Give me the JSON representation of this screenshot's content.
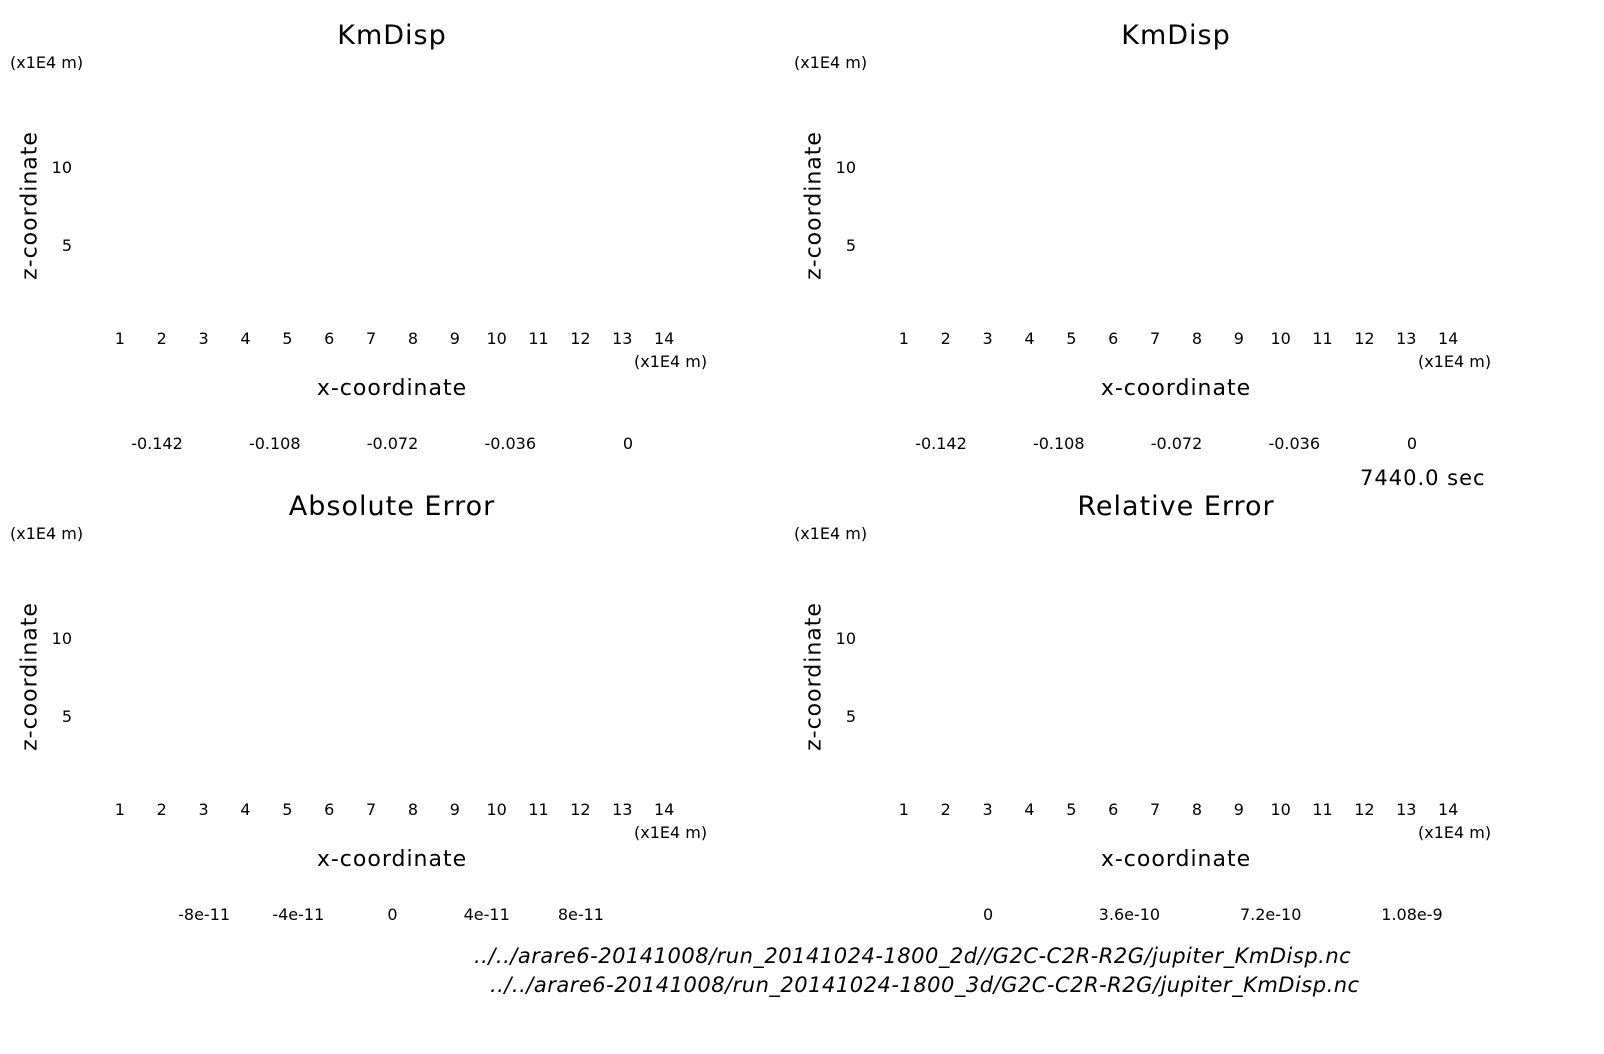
{
  "time_label": "7440.0 sec",
  "footer": {
    "path_2d": "../../arare6-20141008/run_20141024-1800_2d//G2C-C2R-R2G/jupiter_KmDisp.nc",
    "path_3d": "../../arare6-20141008/run_20141024-1800_3d/G2C-C2R-R2G/jupiter_KmDisp.nc"
  },
  "chart_data": [
    {
      "type": "heatmap",
      "title": "KmDisp",
      "xlabel": "x-coordinate",
      "ylabel": "z-coordinate",
      "x_unit": "(x1E4 m)",
      "y_unit": "(x1E4 m)",
      "xlim": [
        0,
        15
      ],
      "ylim": [
        0,
        15
      ],
      "x_ticks": [
        1,
        2,
        3,
        4,
        5,
        6,
        7,
        8,
        9,
        10,
        11,
        12,
        13,
        14
      ],
      "y_ticks": [
        5,
        10
      ],
      "field": "vortex",
      "colorbar": {
        "colors": [
          "#7f00a8",
          "#0a0a96",
          "#0000e6",
          "#1e6ee6",
          "#00aaf0",
          "#28e6c8",
          "#a0e632",
          "#f0c800",
          "#f08c00",
          "#f04600",
          "#f01e32",
          "#ffaaaa"
        ],
        "tick_labels": [
          "-0.142",
          "-0.108",
          "-0.072",
          "-0.036",
          "0"
        ],
        "tick_fracs": [
          0.0,
          0.25,
          0.5,
          0.75,
          1.0
        ]
      }
    },
    {
      "type": "heatmap",
      "title": "KmDisp",
      "xlabel": "x-coordinate",
      "ylabel": "z-coordinate",
      "x_unit": "(x1E4 m)",
      "y_unit": "(x1E4 m)",
      "xlim": [
        0,
        15
      ],
      "ylim": [
        0,
        15
      ],
      "x_ticks": [
        1,
        2,
        3,
        4,
        5,
        6,
        7,
        8,
        9,
        10,
        11,
        12,
        13,
        14
      ],
      "y_ticks": [
        5,
        10
      ],
      "field": "vortex",
      "colorbar": {
        "colors": [
          "#7f00a8",
          "#0a0a96",
          "#0000e6",
          "#1e6ee6",
          "#00aaf0",
          "#28e6c8",
          "#a0e632",
          "#f0c800",
          "#f08c00",
          "#f04600",
          "#f01e32",
          "#ffaaaa"
        ],
        "tick_labels": [
          "-0.142",
          "-0.108",
          "-0.072",
          "-0.036",
          "0"
        ],
        "tick_fracs": [
          0.0,
          0.25,
          0.5,
          0.75,
          1.0
        ]
      }
    },
    {
      "type": "heatmap",
      "title": "Absolute Error",
      "xlabel": "x-coordinate",
      "ylabel": "z-coordinate",
      "x_unit": "(x1E4 m)",
      "y_unit": "(x1E4 m)",
      "xlim": [
        0,
        15
      ],
      "ylim": [
        0,
        15
      ],
      "x_ticks": [
        1,
        2,
        3,
        4,
        5,
        6,
        7,
        8,
        9,
        10,
        11,
        12,
        13,
        14
      ],
      "y_ticks": [
        5,
        10
      ],
      "field": "noise-abs",
      "colorbar": {
        "colors": [
          "#7f00a8",
          "#0a0a96",
          "#0000e6",
          "#1e78e6",
          "#00f0f0",
          "#c8ff00",
          "#f0a000",
          "#f06400",
          "#f01e1e",
          "#ffaaaa"
        ],
        "tick_labels": [
          "-8e-11",
          "-4e-11",
          "0",
          "4e-11",
          "8e-11"
        ],
        "tick_fracs": [
          0.1,
          0.3,
          0.5,
          0.7,
          0.9
        ]
      }
    },
    {
      "type": "heatmap",
      "title": "Relative Error",
      "xlabel": "x-coordinate",
      "ylabel": "z-coordinate",
      "x_unit": "(x1E4 m)",
      "y_unit": "(x1E4 m)",
      "xlim": [
        0,
        15
      ],
      "ylim": [
        0,
        15
      ],
      "x_ticks": [
        1,
        2,
        3,
        4,
        5,
        6,
        7,
        8,
        9,
        10,
        11,
        12,
        13,
        14
      ],
      "y_ticks": [
        5,
        10
      ],
      "field": "noise-rel",
      "colorbar": {
        "colors": [
          "#0000b4",
          "#0014f0",
          "#1e6ee6",
          "#00c8f0",
          "#32e632",
          "#f0e600",
          "#f09600",
          "#f05000",
          "#f01e32",
          "#ffaaaa"
        ],
        "tick_labels": [
          "0",
          "3.6e-10",
          "7.2e-10",
          "1.08e-9"
        ],
        "tick_fracs": [
          0.1,
          0.4,
          0.7,
          1.0
        ]
      }
    }
  ]
}
